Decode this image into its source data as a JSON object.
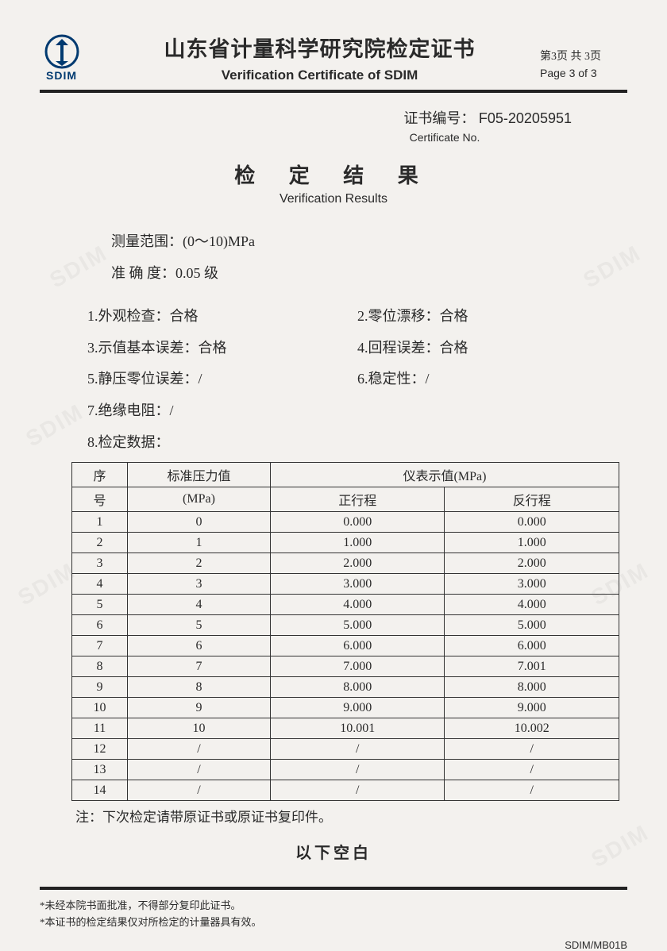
{
  "header": {
    "logo_text": "SDIM",
    "title_cn": "山东省计量科学研究院检定证书",
    "title_en": "Verification Certificate of SDIM",
    "page_cn": "第3页 共 3页",
    "page_en": "Page 3  of 3"
  },
  "cert": {
    "label": "证书编号：",
    "value": "F05-20205951",
    "label_en": "Certificate No."
  },
  "results": {
    "title_cn": "检 定 结 果",
    "title_en": "Verification Results"
  },
  "specs": {
    "range_label": "测量范围：",
    "range_value": "(0～10)MPa",
    "accuracy_label": "准 确 度：",
    "accuracy_value": "0.05 级"
  },
  "checks": {
    "c1": "1.外观检查：合格",
    "c2": "2.零位漂移：合格",
    "c3": "3.示值基本误差：合格",
    "c4": "4.回程误差：合格",
    "c5": "5.静压零位误差：/",
    "c6": "6.稳定性：/",
    "c7": "7.绝缘电阻：/",
    "c8": "8.检定数据："
  },
  "table": {
    "h_seq1": "序",
    "h_seq2": "号",
    "h_std1": "标准压力值",
    "h_std2": "(MPa)",
    "h_disp": "仪表示值(MPa)",
    "h_fwd": "正行程",
    "h_rev": "反行程",
    "rows": [
      {
        "n": "1",
        "std": "0",
        "f": "0.000",
        "r": "0.000"
      },
      {
        "n": "2",
        "std": "1",
        "f": "1.000",
        "r": "1.000"
      },
      {
        "n": "3",
        "std": "2",
        "f": "2.000",
        "r": "2.000"
      },
      {
        "n": "4",
        "std": "3",
        "f": "3.000",
        "r": "3.000"
      },
      {
        "n": "5",
        "std": "4",
        "f": "4.000",
        "r": "4.000"
      },
      {
        "n": "6",
        "std": "5",
        "f": "5.000",
        "r": "5.000"
      },
      {
        "n": "7",
        "std": "6",
        "f": "6.000",
        "r": "6.000"
      },
      {
        "n": "8",
        "std": "7",
        "f": "7.000",
        "r": "7.001"
      },
      {
        "n": "9",
        "std": "8",
        "f": "8.000",
        "r": "8.000"
      },
      {
        "n": "10",
        "std": "9",
        "f": "9.000",
        "r": "9.000"
      },
      {
        "n": "11",
        "std": "10",
        "f": "10.001",
        "r": "10.002"
      },
      {
        "n": "12",
        "std": "/",
        "f": "/",
        "r": "/"
      },
      {
        "n": "13",
        "std": "/",
        "f": "/",
        "r": "/"
      },
      {
        "n": "14",
        "std": "/",
        "f": "/",
        "r": "/"
      }
    ]
  },
  "note": "注：下次检定请带原证书或原证书复印件。",
  "blank": "以下空白",
  "footer": {
    "l1": "*未经本院书面批准，不得部分复印此证书。",
    "l2": "*本证书的检定结果仅对所检定的计量器具有效。"
  },
  "form_id": "SDIM/MB01B",
  "colors": {
    "logo": "#003a70",
    "text": "#2a2a2a",
    "border": "#333333",
    "bg": "#f3f1ee"
  }
}
